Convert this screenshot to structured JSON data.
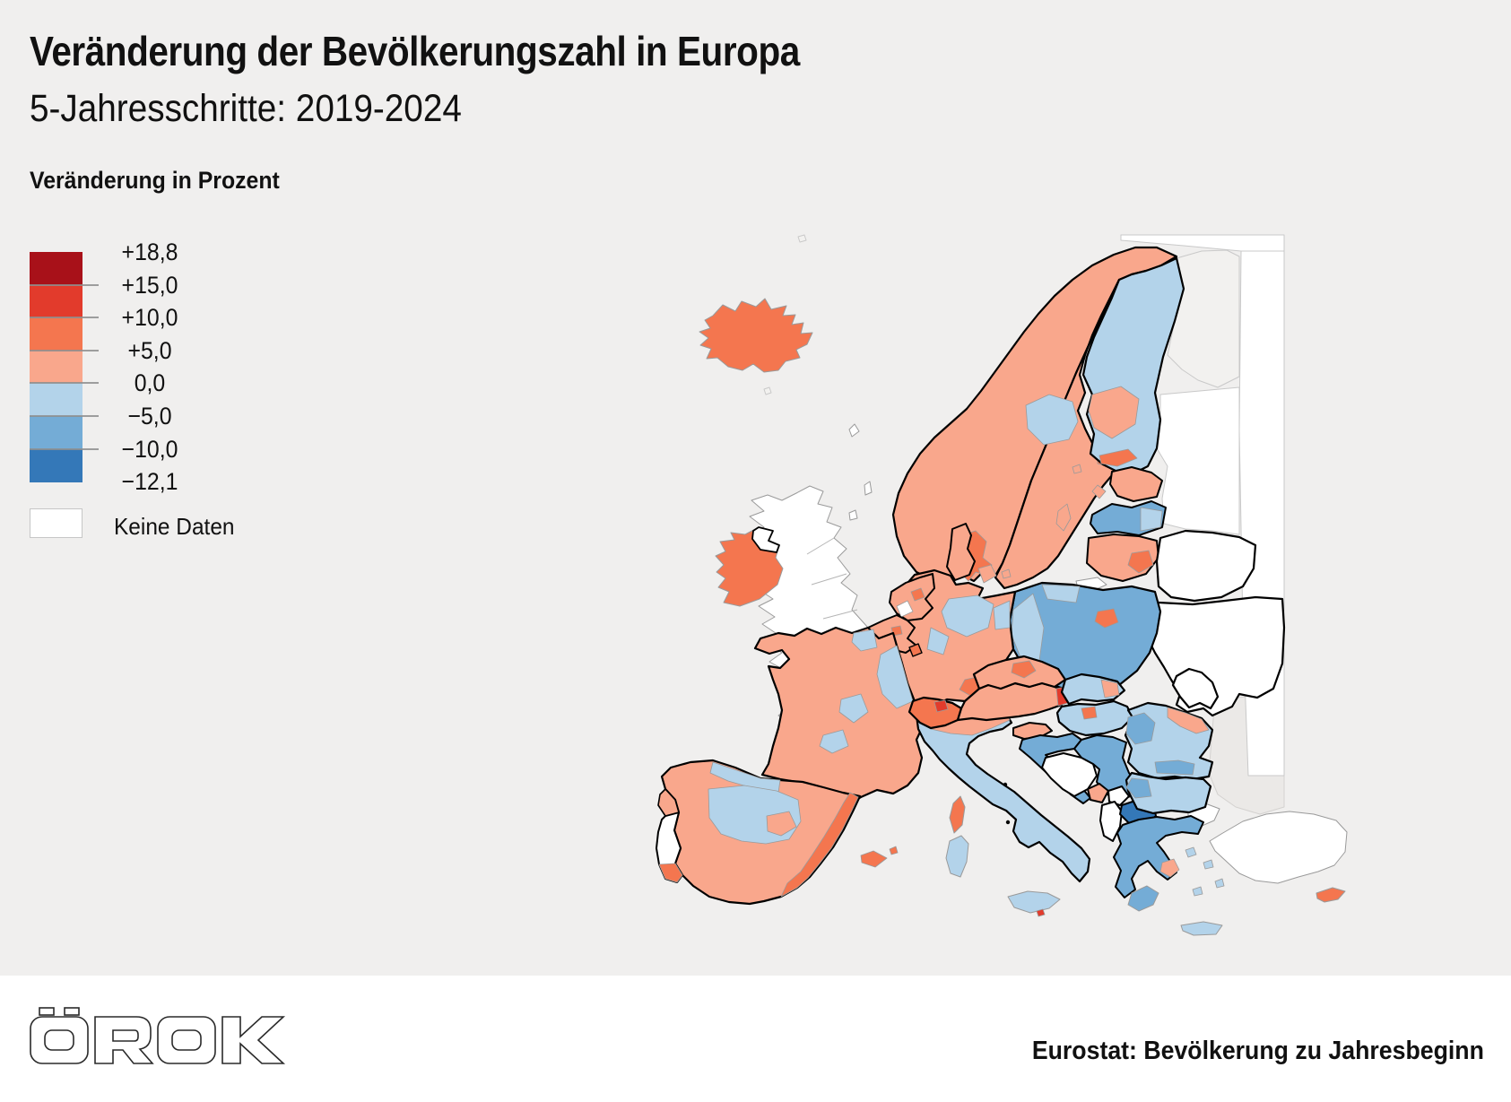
{
  "header": {
    "title": "Veränderung der Bevölkerungszahl in Europa",
    "subtitle": "5-Jahresschritte: 2019-2024"
  },
  "legend": {
    "title": "Veränderung in Prozent",
    "scale_labels": [
      "+18,8",
      "+15,0",
      "+10,0",
      "+5,0",
      "0,0",
      "−5,0",
      "−10,0",
      "−12,1"
    ],
    "scale_colors": [
      "#a81119",
      "#e23b2c",
      "#f4764f",
      "#f9a78c",
      "#b3d3ea",
      "#74acd6",
      "#3478b8"
    ],
    "no_data_label": "Keine Daten",
    "no_data_color": "#ffffff"
  },
  "footer": {
    "logo_text": "ÖROK",
    "source": "Eurostat: Bevölkerung zu Jahresbeginn"
  },
  "map": {
    "class_colors": {
      "c1": "#a81119",
      "c2": "#e23b2c",
      "c3": "#f4764f",
      "c4": "#f9a78c",
      "c5": "#b3d3ea",
      "c6": "#74acd6",
      "c7": "#3478b8",
      "nd": "#ffffff",
      "ru": "#f2f1ef",
      "sea2": "#ebe9e7"
    },
    "regions": {
      "black-sea": "sea2",
      "russia-top": "nd",
      "russia-east": "nd",
      "russia-kola": "ru",
      "russia-west": "nd",
      "islet-1": "ru",
      "islet-2": "ru",
      "turkey": "nd",
      "turkey-thrace": "nd",
      "cyprus": "c3",
      "malta": "c2",
      "great-britain": "nd",
      "shetland": "nd",
      "orkney": "nd",
      "faroe": "nd",
      "ireland": "c3",
      "northern-ireland": "nd",
      "iceland": "c3",
      "norway": "c4",
      "oslo": "c3",
      "sweden": "c4",
      "sweden-mid": "c5",
      "stockholm": "c3",
      "gotland": "c4",
      "denmark": "c4",
      "denmark-islands-1": "c4",
      "denmark-islands-2": "c4",
      "finland": "c5",
      "finland-central": "c4",
      "helsinki": "c3",
      "aland": "c4",
      "estonia": "c4",
      "estonia-islands": "c4",
      "latvia": "c6",
      "latvia-east": "c5",
      "lithuania": "c4",
      "vilnius": "c3",
      "kaliningrad": "nd",
      "belarus": "nd",
      "ukraine": "nd",
      "moldova": "nd",
      "poland": "c6",
      "poland-west": "c5",
      "poland-north": "c5",
      "warsaw": "c3",
      "germany": "c4",
      "germany-center": "c5",
      "germany-west": "c5",
      "germany-east": "c5",
      "munich": "c3",
      "netherlands": "c4",
      "netherlands-nodata": "nd",
      "amsterdam": "c3",
      "belgium": "c4",
      "brussels": "c3",
      "luxembourg": "c3",
      "france": "c4",
      "france-northeast": "c5",
      "france-north": "c5",
      "france-center-1": "c5",
      "france-center-2": "c5",
      "corsica": "c3",
      "spain": "c4",
      "spain-north": "c5",
      "spain-central": "c5",
      "madrid": "c4",
      "spain-east": "c3",
      "balearics": "c3",
      "balearics-small": "c3",
      "portugal": "nd",
      "portugal-north": "c4",
      "algarve": "c3",
      "italy": "c5",
      "italy-north": "c4",
      "sicily": "c5",
      "sardinia": "c5",
      "switzerland": "c3",
      "zurich": "c2",
      "austria": "c4",
      "vienna": "c2",
      "czechia": "c4",
      "prague": "c3",
      "slovakia": "c5",
      "slovakia-east": "c4",
      "hungary": "c5",
      "budapest": "c3",
      "slovenia": "c4",
      "croatia": "c6",
      "bosnia": "nd",
      "serbia": "c6",
      "montenegro": "c4",
      "kosovo": "nd",
      "albania": "nd",
      "north-macedonia": "c7",
      "romania": "c5",
      "romania-northeast": "c4",
      "romania-west": "c6",
      "romania-south": "c6",
      "bulgaria": "c5",
      "bulgaria-west": "c6",
      "greece": "c6",
      "peloponnese": "c6",
      "athens": "c4",
      "greece-island-1": "c5",
      "greece-island-2": "c5",
      "greece-island-3": "c5",
      "greece-island-4": "c5",
      "crete": "c5"
    }
  }
}
